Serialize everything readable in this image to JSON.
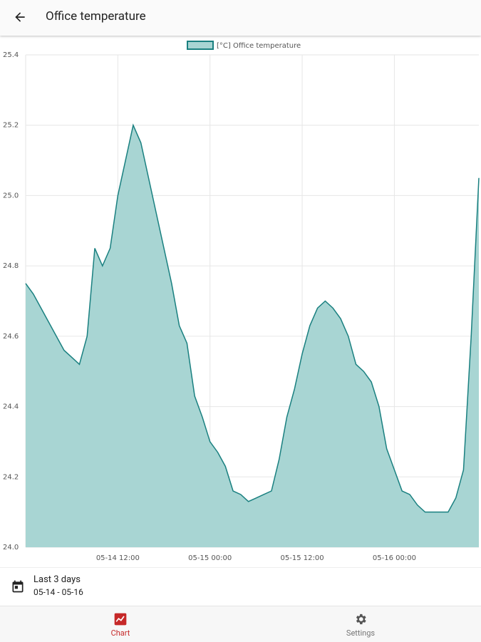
{
  "header": {
    "title": "Office temperature"
  },
  "chart_data": {
    "type": "area",
    "series": [
      {
        "name": "[°C] Office temperature",
        "color": "#1a8080",
        "fill": "#a8d5d3",
        "values": [
          24.75,
          24.72,
          24.68,
          24.64,
          24.6,
          24.56,
          24.54,
          24.52,
          24.6,
          24.85,
          24.8,
          24.85,
          25.0,
          25.1,
          25.2,
          25.15,
          25.05,
          24.95,
          24.85,
          24.75,
          24.63,
          24.58,
          24.43,
          24.37,
          24.3,
          24.27,
          24.23,
          24.16,
          24.15,
          24.13,
          24.14,
          24.15,
          24.16,
          24.25,
          24.37,
          24.45,
          24.55,
          24.63,
          24.68,
          24.7,
          24.68,
          24.65,
          24.6,
          24.52,
          24.5,
          24.47,
          24.4,
          24.28,
          24.22,
          24.16,
          24.15,
          24.12,
          24.1,
          24.1,
          24.1,
          24.1,
          24.14,
          24.22,
          24.6,
          25.05
        ]
      }
    ],
    "x": [
      "05-14 00:00",
      "05-14 01:00",
      "05-14 02:00",
      "05-14 03:00",
      "05-14 04:00",
      "05-14 05:00",
      "05-14 06:00",
      "05-14 07:00",
      "05-14 08:00",
      "05-14 09:00",
      "05-14 10:00",
      "05-14 11:00",
      "05-14 12:00",
      "05-14 13:00",
      "05-14 14:00",
      "05-14 15:00",
      "05-14 16:00",
      "05-14 17:00",
      "05-14 18:00",
      "05-14 19:00",
      "05-14 20:00",
      "05-14 21:00",
      "05-14 22:00",
      "05-14 23:00",
      "05-15 00:00",
      "05-15 01:00",
      "05-15 02:00",
      "05-15 03:00",
      "05-15 04:00",
      "05-15 05:00",
      "05-15 06:00",
      "05-15 07:00",
      "05-15 08:00",
      "05-15 09:00",
      "05-15 10:00",
      "05-15 11:00",
      "05-15 12:00",
      "05-15 13:00",
      "05-15 14:00",
      "05-15 15:00",
      "05-15 16:00",
      "05-15 17:00",
      "05-15 18:00",
      "05-15 19:00",
      "05-15 20:00",
      "05-15 21:00",
      "05-15 22:00",
      "05-15 23:00",
      "05-16 00:00",
      "05-16 01:00",
      "05-16 02:00",
      "05-16 03:00",
      "05-16 04:00",
      "05-16 05:00",
      "05-16 06:00",
      "05-16 07:00",
      "05-16 08:00",
      "05-16 09:00",
      "05-16 10:00",
      "05-16 11:00"
    ],
    "xticks": [
      "05-14 12:00",
      "05-15 00:00",
      "05-15 12:00",
      "05-16 00:00"
    ],
    "ylim": [
      24.0,
      25.4
    ],
    "yticks": [
      {
        "value": 24,
        "label": "24.0"
      },
      24.2,
      24.4,
      24.6,
      24.8,
      {
        "value": 25,
        "label": "25.0"
      },
      25.2,
      25.4
    ],
    "grid": true,
    "legend": "top"
  },
  "range": {
    "label": "Last 3 days",
    "dates": "05-14 - 05-16"
  },
  "nav": [
    {
      "label": "Chart",
      "color": "#c62828"
    },
    {
      "label": "Settings",
      "color": "#757575"
    }
  ]
}
